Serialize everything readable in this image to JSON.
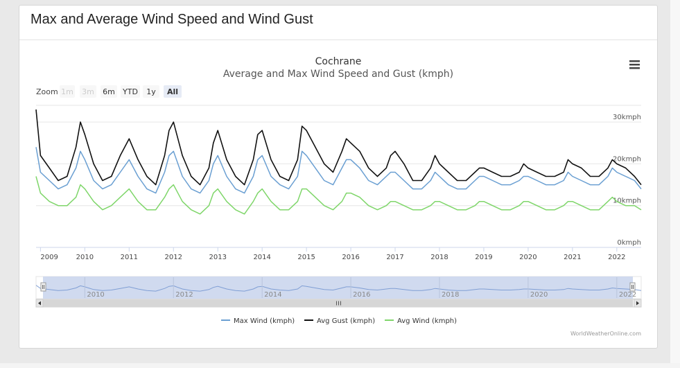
{
  "panel": {
    "title": "Max and Average Wind Speed and Wind Gust"
  },
  "chart_data": {
    "type": "line",
    "title": "Cochrane",
    "subtitle": "Average and Max Wind Speed and Gust (kmph)",
    "x_unit": "year",
    "xlim": [
      2008.9,
      2022.55
    ],
    "ylim": [
      0,
      34
    ],
    "y_ticks": [
      {
        "value": 0,
        "label": "0kmph"
      },
      {
        "value": 10,
        "label": "10kmph"
      },
      {
        "value": 20,
        "label": "20kmph"
      },
      {
        "value": 30,
        "label": "30kmph"
      }
    ],
    "x_ticks": [
      "2009",
      "2010",
      "2011",
      "2012",
      "2013",
      "2014",
      "2015",
      "2016",
      "2017",
      "2018",
      "2019",
      "2020",
      "2021",
      "2022"
    ],
    "navigator_ticks": [
      "2010",
      "2012",
      "2014",
      "2016",
      "2018",
      "2020",
      "2022"
    ],
    "legend_position": "bottom",
    "credit": "WorldWeatherOnline.com",
    "series": [
      {
        "name": "Max Wind (kmph)",
        "color": "#6a9fd2",
        "x": [
          2008.9,
          2009.0,
          2009.2,
          2009.4,
          2009.6,
          2009.8,
          2009.9,
          2010.0,
          2010.2,
          2010.4,
          2010.6,
          2010.8,
          2011.0,
          2011.2,
          2011.4,
          2011.6,
          2011.8,
          2011.9,
          2012.0,
          2012.2,
          2012.4,
          2012.6,
          2012.8,
          2012.9,
          2013.0,
          2013.2,
          2013.4,
          2013.6,
          2013.8,
          2013.9,
          2014.0,
          2014.2,
          2014.4,
          2014.6,
          2014.8,
          2014.9,
          2015.0,
          2015.2,
          2015.4,
          2015.6,
          2015.8,
          2015.9,
          2016.0,
          2016.2,
          2016.4,
          2016.6,
          2016.8,
          2016.9,
          2017.0,
          2017.2,
          2017.4,
          2017.6,
          2017.8,
          2017.9,
          2018.0,
          2018.2,
          2018.4,
          2018.6,
          2018.8,
          2018.9,
          2019.0,
          2019.2,
          2019.4,
          2019.6,
          2019.8,
          2019.9,
          2020.0,
          2020.2,
          2020.4,
          2020.6,
          2020.8,
          2020.9,
          2021.0,
          2021.2,
          2021.4,
          2021.6,
          2021.8,
          2021.9,
          2022.0,
          2022.2,
          2022.4,
          2022.55
        ],
        "y": [
          24,
          18,
          16,
          14,
          15,
          19,
          23,
          21,
          16,
          14,
          15,
          18,
          21,
          17,
          14,
          13,
          18,
          22,
          23,
          17,
          14,
          13,
          16,
          20,
          22,
          17,
          14,
          13,
          17,
          21,
          22,
          17,
          15,
          14,
          17,
          23,
          22,
          19,
          16,
          15,
          19,
          21,
          21,
          19,
          16,
          15,
          17,
          18,
          18,
          16,
          14,
          14,
          16,
          18,
          17,
          15,
          14,
          14,
          16,
          17,
          17,
          16,
          15,
          15,
          16,
          17,
          17,
          16,
          15,
          15,
          16,
          18,
          17,
          16,
          15,
          15,
          17,
          19,
          18,
          17,
          16,
          14
        ]
      },
      {
        "name": "Avg Gust (kmph)",
        "color": "#111111",
        "x": [
          2008.9,
          2009.0,
          2009.2,
          2009.4,
          2009.6,
          2009.8,
          2009.9,
          2010.0,
          2010.2,
          2010.4,
          2010.6,
          2010.8,
          2011.0,
          2011.2,
          2011.4,
          2011.6,
          2011.8,
          2011.9,
          2012.0,
          2012.2,
          2012.4,
          2012.6,
          2012.8,
          2012.9,
          2013.0,
          2013.2,
          2013.4,
          2013.6,
          2013.8,
          2013.9,
          2014.0,
          2014.2,
          2014.4,
          2014.6,
          2014.8,
          2014.9,
          2015.0,
          2015.2,
          2015.4,
          2015.6,
          2015.8,
          2015.9,
          2016.0,
          2016.2,
          2016.4,
          2016.6,
          2016.8,
          2016.9,
          2017.0,
          2017.2,
          2017.4,
          2017.6,
          2017.8,
          2017.9,
          2018.0,
          2018.2,
          2018.4,
          2018.6,
          2018.8,
          2018.9,
          2019.0,
          2019.2,
          2019.4,
          2019.6,
          2019.8,
          2019.9,
          2020.0,
          2020.2,
          2020.4,
          2020.6,
          2020.8,
          2020.9,
          2021.0,
          2021.2,
          2021.4,
          2021.6,
          2021.8,
          2021.9,
          2022.0,
          2022.2,
          2022.4,
          2022.55
        ],
        "y": [
          33,
          22,
          19,
          16,
          17,
          24,
          30,
          27,
          20,
          16,
          17,
          22,
          26,
          21,
          17,
          15,
          22,
          28,
          30,
          22,
          17,
          15,
          19,
          25,
          28,
          21,
          17,
          15,
          21,
          27,
          28,
          21,
          17,
          16,
          21,
          29,
          28,
          24,
          20,
          18,
          23,
          26,
          25,
          23,
          19,
          17,
          19,
          22,
          23,
          20,
          16,
          16,
          19,
          22,
          20,
          18,
          16,
          16,
          18,
          19,
          19,
          18,
          17,
          17,
          18,
          20,
          19,
          18,
          17,
          17,
          18,
          21,
          20,
          19,
          17,
          17,
          19,
          21,
          20,
          19,
          17,
          15
        ]
      },
      {
        "name": "Avg Wind (kmph)",
        "color": "#7fd66a",
        "x": [
          2008.9,
          2009.0,
          2009.2,
          2009.4,
          2009.6,
          2009.8,
          2009.9,
          2010.0,
          2010.2,
          2010.4,
          2010.6,
          2010.8,
          2011.0,
          2011.2,
          2011.4,
          2011.6,
          2011.8,
          2011.9,
          2012.0,
          2012.2,
          2012.4,
          2012.6,
          2012.8,
          2012.9,
          2013.0,
          2013.2,
          2013.4,
          2013.6,
          2013.8,
          2013.9,
          2014.0,
          2014.2,
          2014.4,
          2014.6,
          2014.8,
          2014.9,
          2015.0,
          2015.2,
          2015.4,
          2015.6,
          2015.8,
          2015.9,
          2016.0,
          2016.2,
          2016.4,
          2016.6,
          2016.8,
          2016.9,
          2017.0,
          2017.2,
          2017.4,
          2017.6,
          2017.8,
          2017.9,
          2018.0,
          2018.2,
          2018.4,
          2018.6,
          2018.8,
          2018.9,
          2019.0,
          2019.2,
          2019.4,
          2019.6,
          2019.8,
          2019.9,
          2020.0,
          2020.2,
          2020.4,
          2020.6,
          2020.8,
          2020.9,
          2021.0,
          2021.2,
          2021.4,
          2021.6,
          2021.8,
          2021.9,
          2022.0,
          2022.2,
          2022.4,
          2022.55
        ],
        "y": [
          17,
          13,
          11,
          10,
          10,
          12,
          15,
          14,
          11,
          9,
          10,
          12,
          14,
          11,
          9,
          9,
          12,
          14,
          15,
          11,
          9,
          8,
          10,
          13,
          14,
          11,
          9,
          8,
          11,
          13,
          14,
          11,
          9,
          9,
          11,
          14,
          14,
          12,
          10,
          9,
          11,
          13,
          13,
          12,
          10,
          9,
          10,
          11,
          11,
          10,
          9,
          9,
          10,
          11,
          11,
          10,
          9,
          9,
          10,
          11,
          11,
          10,
          9,
          9,
          10,
          11,
          11,
          10,
          9,
          9,
          10,
          11,
          11,
          10,
          9,
          9,
          11,
          12,
          11,
          10,
          10,
          9
        ]
      }
    ]
  },
  "zoom": {
    "label": "Zoom",
    "buttons": [
      {
        "label": "1m",
        "state": "disabled"
      },
      {
        "label": "3m",
        "state": "disabled"
      },
      {
        "label": "6m",
        "state": "normal"
      },
      {
        "label": "YTD",
        "state": "normal"
      },
      {
        "label": "1y",
        "state": "normal"
      },
      {
        "label": "All",
        "state": "selected"
      }
    ]
  },
  "colors": {
    "grid": "#e6e6e6",
    "navigator_mask": "#c8d3ec",
    "navigator_line": "#7f9ed4",
    "scrollbar": "#d6d6d6"
  }
}
